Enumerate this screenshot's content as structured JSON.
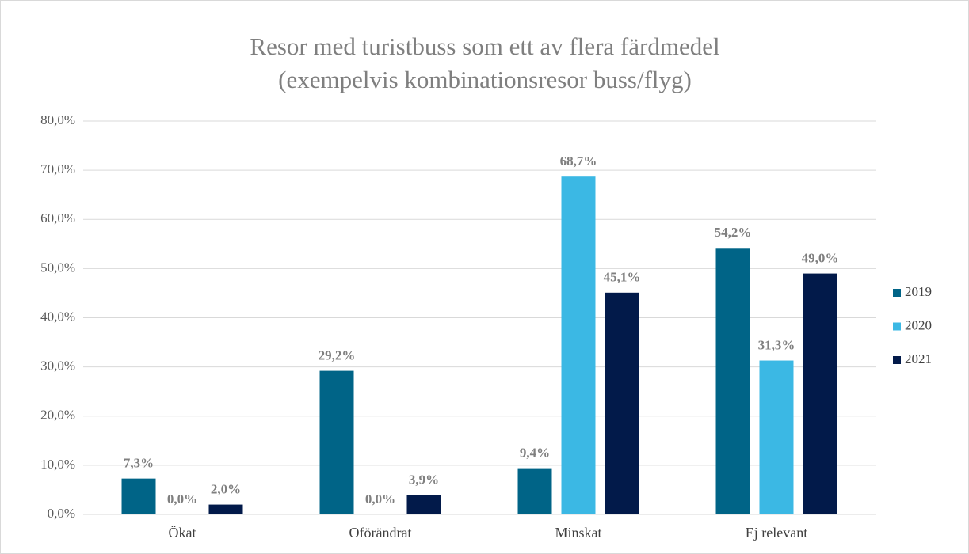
{
  "chart_data": {
    "type": "bar",
    "title": [
      "Resor med turistbuss som ett av flera färdmedel",
      "(exempelvis kombinationsresor buss/flyg)"
    ],
    "categories": [
      "Ökat",
      "Oförändrat",
      "Minskat",
      "Ej relevant"
    ],
    "series": [
      {
        "name": "2019",
        "color": "#006487",
        "values": [
          7.3,
          29.2,
          9.4,
          54.2
        ],
        "value_labels": [
          "7,3%",
          "29,2%",
          "9,4%",
          "54,2%"
        ]
      },
      {
        "name": "2020",
        "color": "#3bb8e4",
        "values": [
          0.0,
          0.0,
          68.7,
          31.3
        ],
        "value_labels": [
          "0,0%",
          "0,0%",
          "68,7%",
          "31,3%"
        ]
      },
      {
        "name": "2021",
        "color": "#021a4a",
        "values": [
          2.0,
          3.9,
          45.1,
          49.0
        ],
        "value_labels": [
          "2,0%",
          "3,9%",
          "45,1%",
          "49,0%"
        ]
      }
    ],
    "ylim": [
      0,
      80
    ],
    "yticks": [
      {
        "value": 0,
        "label": "0,0%"
      },
      {
        "value": 10,
        "label": "10,0%"
      },
      {
        "value": 20,
        "label": "20,0%"
      },
      {
        "value": 30,
        "label": "30,0%"
      },
      {
        "value": 40,
        "label": "40,0%"
      },
      {
        "value": 50,
        "label": "50,0%"
      },
      {
        "value": 60,
        "label": "60,0%"
      },
      {
        "value": 70,
        "label": "70,0%"
      },
      {
        "value": 80,
        "label": "80,0%"
      }
    ],
    "grid": true,
    "legend": "right"
  }
}
